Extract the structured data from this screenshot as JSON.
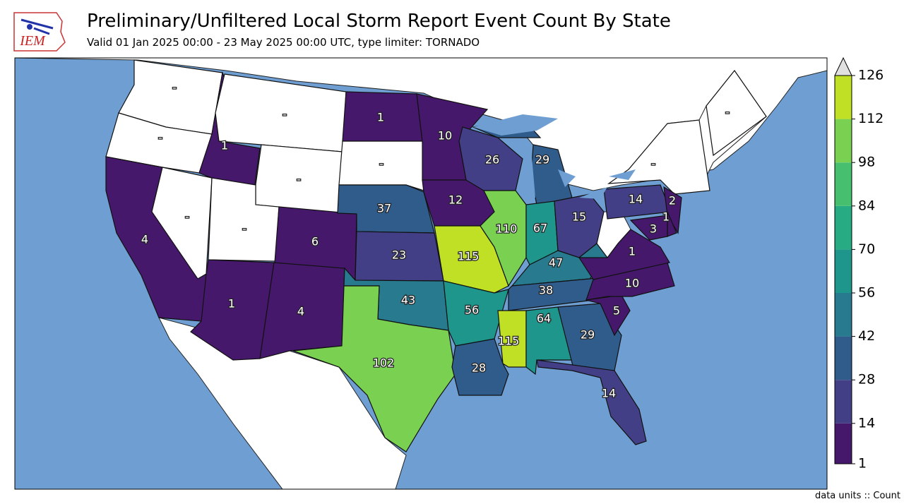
{
  "title": "Preliminary/Unfiltered Local Storm Report Event Count By State",
  "subtitle": "Valid 01 Jan 2025 00:00 - 23 May 2025 00:00 UTC, type limiter: TORNADO",
  "logo": "IEM",
  "footer": "data units :: Count",
  "chart_data": {
    "type": "choropleth",
    "values": [
      null,
      null,
      4,
      null,
      1,
      null,
      null,
      null,
      6,
      1,
      4,
      1,
      null,
      37,
      23,
      43,
      102,
      10,
      12,
      115,
      56,
      28,
      26,
      110,
      29,
      67,
      15,
      47,
      38,
      115,
      64,
      29,
      14,
      5,
      10,
      1,
      14,
      null,
      2,
      1,
      3,
      null
    ],
    "value_labels": [
      "-",
      "-",
      "4",
      "-",
      "1",
      "-",
      "-",
      "-",
      "6",
      "1",
      "4",
      "1",
      "-",
      "37",
      "23",
      "43",
      "102",
      "10",
      "12",
      "115",
      "56",
      "28",
      "26",
      "110",
      "29",
      "67",
      "15",
      "47",
      "38",
      "115",
      "64",
      "29",
      "14",
      "5",
      "10",
      "1",
      "14",
      "-",
      "2",
      "1",
      "3",
      "-"
    ],
    "colorbar": {
      "levels": [
        1,
        14,
        28,
        42,
        56,
        70,
        84,
        98,
        112,
        126
      ],
      "colors": [
        "#46186c",
        "#433f87",
        "#305c8c",
        "#287a8e",
        "#1f968b",
        "#26ab82",
        "#46c06f",
        "#7ad151",
        "#bfe025"
      ],
      "over_color": "#e0e0e0"
    },
    "no_data_color": "#ffffff",
    "ocean_color": "#6f9fd2"
  }
}
